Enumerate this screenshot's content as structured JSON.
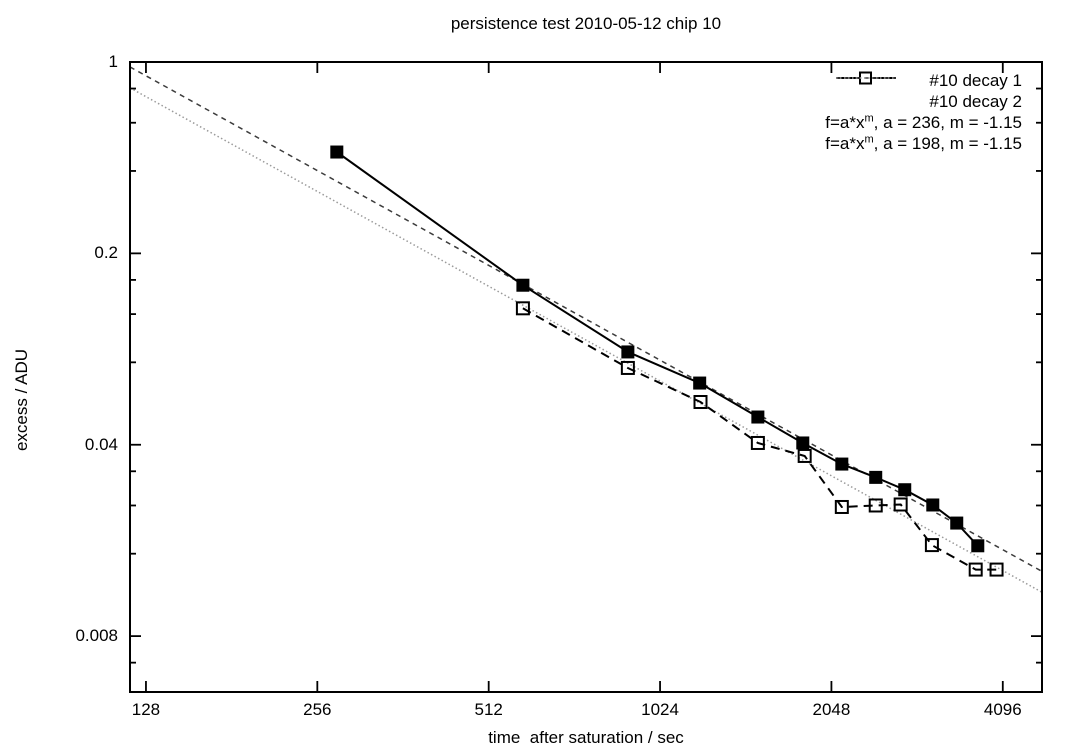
{
  "title": "persistence test 2010-05-12 chip 10",
  "legend": {
    "position": "top-right-inside",
    "rows": [
      {
        "label": "#10 decay 1"
      },
      {
        "label": "#10 decay 2"
      },
      {
        "pre": "f=a*x",
        "sup": "m",
        "post": ", a = 236, m = -1.15"
      },
      {
        "pre": "f=a*x",
        "sup": "m",
        "post": ", a = 198, m = -1.15"
      }
    ]
  },
  "chart_data": {
    "type": "line",
    "title": "persistence test 2010-05-12 chip 10",
    "xlabel": "time  after saturation / sec",
    "ylabel": "excess / ADU",
    "x_scale": "log",
    "y_scale": "log",
    "xlim": [
      120,
      4800
    ],
    "ylim": [
      0.005,
      1.0
    ],
    "x_ticks": [
      128,
      256,
      512,
      1024,
      2048,
      4096
    ],
    "y_ticks": [
      1,
      0.2,
      0.04,
      0.008
    ],
    "y_minor_ticks": [
      0.8,
      0.6,
      0.4,
      0.16,
      0.12,
      0.08,
      0.032,
      0.024,
      0.016,
      0.0064
    ],
    "grid": false,
    "legend_position": "top-right",
    "colors": {
      "foreground": "#000000",
      "background": "#ffffff",
      "fit_236": "#3c3c3c",
      "fit_198": "#9a9a9a"
    },
    "series": [
      {
        "name": "#10 decay 1",
        "type": "linespoints",
        "line": "solid",
        "marker": "filled-square",
        "points": [
          [
            277,
            0.469
          ],
          [
            588,
            0.153
          ],
          [
            899,
            0.0873
          ],
          [
            1202,
            0.0672
          ],
          [
            1521,
            0.0505
          ],
          [
            1824,
            0.0406
          ],
          [
            2136,
            0.034
          ],
          [
            2450,
            0.0304
          ],
          [
            2755,
            0.0274
          ],
          [
            3086,
            0.0241
          ],
          [
            3400,
            0.0207
          ],
          [
            3702,
            0.0171
          ]
        ]
      },
      {
        "name": "#10 decay 2",
        "type": "linespoints",
        "line": "dashed",
        "marker": "open-square",
        "points": [
          [
            588,
            0.126
          ],
          [
            899,
            0.0763
          ],
          [
            1206,
            0.0573
          ],
          [
            1521,
            0.0406
          ],
          [
            1838,
            0.0364
          ],
          [
            2136,
            0.0237
          ],
          [
            2450,
            0.024
          ],
          [
            2710,
            0.0242
          ],
          [
            3075,
            0.0172
          ],
          [
            3671,
            0.014
          ],
          [
            3994,
            0.014
          ]
        ]
      },
      {
        "name": "f=a*x^m, a = 236, m = -1.15",
        "type": "fit-line",
        "line": "dashed-fine",
        "fit": {
          "a": 236,
          "m": -1.15
        }
      },
      {
        "name": "f=a*x^m, a = 198, m = -1.15",
        "type": "fit-line",
        "line": "dotted",
        "fit": {
          "a": 198,
          "m": -1.15
        }
      }
    ]
  }
}
